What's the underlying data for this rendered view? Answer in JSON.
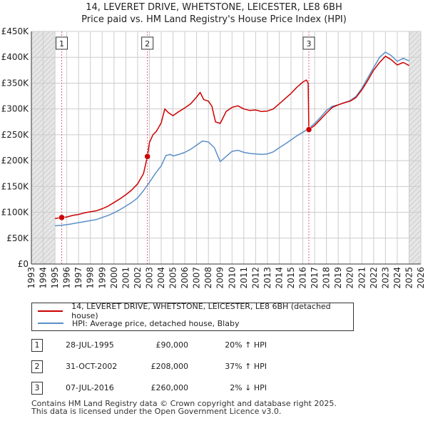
{
  "title": "14, LEVERET DRIVE, WHETSTONE, LEICESTER, LE8 6BH",
  "subtitle": "Price paid vs. HM Land Registry's House Price Index (HPI)",
  "colors": {
    "property": "#cc0000",
    "hpi": "#5b8fc9",
    "shade": "#dddddd",
    "marker_line": "#e06080",
    "grid": "#cccccc"
  },
  "chart_data": {
    "type": "line",
    "xlim": [
      1993,
      2026
    ],
    "ylim": [
      0,
      450000
    ],
    "x_ticks": [
      "1993",
      "1994",
      "1995",
      "1996",
      "1997",
      "1998",
      "1999",
      "2000",
      "2001",
      "2002",
      "2003",
      "2004",
      "2005",
      "2006",
      "2007",
      "2008",
      "2009",
      "2010",
      "2011",
      "2012",
      "2013",
      "2014",
      "2015",
      "2016",
      "2017",
      "2018",
      "2019",
      "2020",
      "2021",
      "2022",
      "2023",
      "2024",
      "2025",
      "2026"
    ],
    "y_ticks": [
      {
        "value": 0,
        "label": "£0"
      },
      {
        "value": 50000,
        "label": "£50K"
      },
      {
        "value": 100000,
        "label": "£100K"
      },
      {
        "value": 150000,
        "label": "£150K"
      },
      {
        "value": 200000,
        "label": "£200K"
      },
      {
        "value": 250000,
        "label": "£250K"
      },
      {
        "value": 300000,
        "label": "£300K"
      },
      {
        "value": 350000,
        "label": "£350K"
      },
      {
        "value": 400000,
        "label": "£400K"
      },
      {
        "value": 450000,
        "label": "£450K"
      }
    ],
    "hatched_ranges": [
      [
        1993,
        1995.0
      ],
      [
        2025.0,
        2026
      ]
    ],
    "series": [
      {
        "name": "14, LEVERET DRIVE, WHETSTONE, LEICESTER, LE8 6BH (detached house)",
        "color": "#cc0000",
        "points": [
          [
            1995.0,
            88000
          ],
          [
            1995.57,
            90000
          ],
          [
            1996,
            91000
          ],
          [
            1996.5,
            94000
          ],
          [
            1997,
            96000
          ],
          [
            1997.5,
            99000
          ],
          [
            1998,
            101000
          ],
          [
            1998.5,
            103000
          ],
          [
            1999,
            107000
          ],
          [
            1999.5,
            112000
          ],
          [
            2000,
            119000
          ],
          [
            2000.5,
            126000
          ],
          [
            2001,
            134000
          ],
          [
            2001.5,
            143000
          ],
          [
            2002,
            155000
          ],
          [
            2002.5,
            175000
          ],
          [
            2002.75,
            200000
          ],
          [
            2002.83,
            208000
          ],
          [
            2003,
            235000
          ],
          [
            2003.3,
            250000
          ],
          [
            2003.6,
            257000
          ],
          [
            2004,
            273000
          ],
          [
            2004.3,
            300000
          ],
          [
            2004.6,
            293000
          ],
          [
            2005,
            287000
          ],
          [
            2005.5,
            295000
          ],
          [
            2006,
            302000
          ],
          [
            2006.5,
            310000
          ],
          [
            2007,
            323000
          ],
          [
            2007.3,
            332000
          ],
          [
            2007.6,
            318000
          ],
          [
            2008,
            315000
          ],
          [
            2008.3,
            305000
          ],
          [
            2008.6,
            275000
          ],
          [
            2009,
            272000
          ],
          [
            2009.5,
            295000
          ],
          [
            2010,
            303000
          ],
          [
            2010.5,
            306000
          ],
          [
            2011,
            300000
          ],
          [
            2011.5,
            297000
          ],
          [
            2012,
            298000
          ],
          [
            2012.5,
            295000
          ],
          [
            2013,
            296000
          ],
          [
            2013.5,
            300000
          ],
          [
            2014,
            310000
          ],
          [
            2014.5,
            320000
          ],
          [
            2015,
            330000
          ],
          [
            2015.5,
            342000
          ],
          [
            2016,
            352000
          ],
          [
            2016.3,
            356000
          ],
          [
            2016.45,
            350000
          ],
          [
            2016.51,
            260000
          ],
          [
            2017,
            268000
          ],
          [
            2017.5,
            280000
          ],
          [
            2018,
            292000
          ],
          [
            2018.5,
            303000
          ],
          [
            2019,
            308000
          ],
          [
            2019.5,
            312000
          ],
          [
            2020,
            315000
          ],
          [
            2020.5,
            322000
          ],
          [
            2021,
            337000
          ],
          [
            2021.5,
            355000
          ],
          [
            2022,
            375000
          ],
          [
            2022.5,
            390000
          ],
          [
            2023,
            402000
          ],
          [
            2023.5,
            395000
          ],
          [
            2024,
            385000
          ],
          [
            2024.5,
            390000
          ],
          [
            2025,
            384000
          ]
        ]
      },
      {
        "name": "HPI: Average price, detached house, Blaby",
        "color": "#5b8fc9",
        "points": [
          [
            1995.0,
            74000
          ],
          [
            1995.5,
            75000
          ],
          [
            1996,
            76000
          ],
          [
            1996.5,
            78000
          ],
          [
            1997,
            80000
          ],
          [
            1997.5,
            82000
          ],
          [
            1998,
            84000
          ],
          [
            1998.5,
            86000
          ],
          [
            1999,
            90000
          ],
          [
            1999.5,
            94000
          ],
          [
            2000,
            99000
          ],
          [
            2000.5,
            105000
          ],
          [
            2001,
            112000
          ],
          [
            2001.5,
            119000
          ],
          [
            2002,
            128000
          ],
          [
            2002.5,
            142000
          ],
          [
            2003,
            158000
          ],
          [
            2003.5,
            175000
          ],
          [
            2004,
            190000
          ],
          [
            2004.4,
            210000
          ],
          [
            2004.8,
            212000
          ],
          [
            2005,
            209000
          ],
          [
            2005.5,
            212000
          ],
          [
            2006,
            216000
          ],
          [
            2006.5,
            222000
          ],
          [
            2007,
            230000
          ],
          [
            2007.5,
            238000
          ],
          [
            2008,
            236000
          ],
          [
            2008.5,
            225000
          ],
          [
            2009,
            198000
          ],
          [
            2009.5,
            208000
          ],
          [
            2010,
            218000
          ],
          [
            2010.5,
            220000
          ],
          [
            2011,
            216000
          ],
          [
            2011.5,
            214000
          ],
          [
            2012,
            213000
          ],
          [
            2012.5,
            212000
          ],
          [
            2013,
            213000
          ],
          [
            2013.5,
            217000
          ],
          [
            2014,
            225000
          ],
          [
            2014.5,
            232000
          ],
          [
            2015,
            240000
          ],
          [
            2015.5,
            248000
          ],
          [
            2016,
            255000
          ],
          [
            2016.5,
            262000
          ],
          [
            2017,
            272000
          ],
          [
            2017.5,
            284000
          ],
          [
            2018,
            297000
          ],
          [
            2018.5,
            305000
          ],
          [
            2019,
            308000
          ],
          [
            2019.5,
            312000
          ],
          [
            2020,
            316000
          ],
          [
            2020.5,
            324000
          ],
          [
            2021,
            340000
          ],
          [
            2021.5,
            360000
          ],
          [
            2022,
            380000
          ],
          [
            2022.5,
            400000
          ],
          [
            2023,
            410000
          ],
          [
            2023.5,
            403000
          ],
          [
            2024,
            392000
          ],
          [
            2024.5,
            398000
          ],
          [
            2025,
            393000
          ]
        ]
      }
    ],
    "transactions": [
      {
        "id": "1",
        "x": 1995.57,
        "price": 90000
      },
      {
        "id": "2",
        "x": 2002.83,
        "price": 208000
      },
      {
        "id": "3",
        "x": 2016.51,
        "price": 260000
      }
    ]
  },
  "legend": {
    "property_label": "14, LEVERET DRIVE, WHETSTONE, LEICESTER, LE8 6BH (detached house)",
    "hpi_label": "HPI: Average price, detached house, Blaby"
  },
  "transactions_table": [
    {
      "num": "1",
      "date": "28-JUL-1995",
      "price": "£90,000",
      "hpi": "20% ↑ HPI"
    },
    {
      "num": "2",
      "date": "31-OCT-2002",
      "price": "£208,000",
      "hpi": "37% ↑ HPI"
    },
    {
      "num": "3",
      "date": "07-JUL-2016",
      "price": "£260,000",
      "hpi": "2% ↓ HPI"
    }
  ],
  "footer": {
    "line1": "Contains HM Land Registry data © Crown copyright and database right 2025.",
    "line2": "This data is licensed under the Open Government Licence v3.0."
  }
}
